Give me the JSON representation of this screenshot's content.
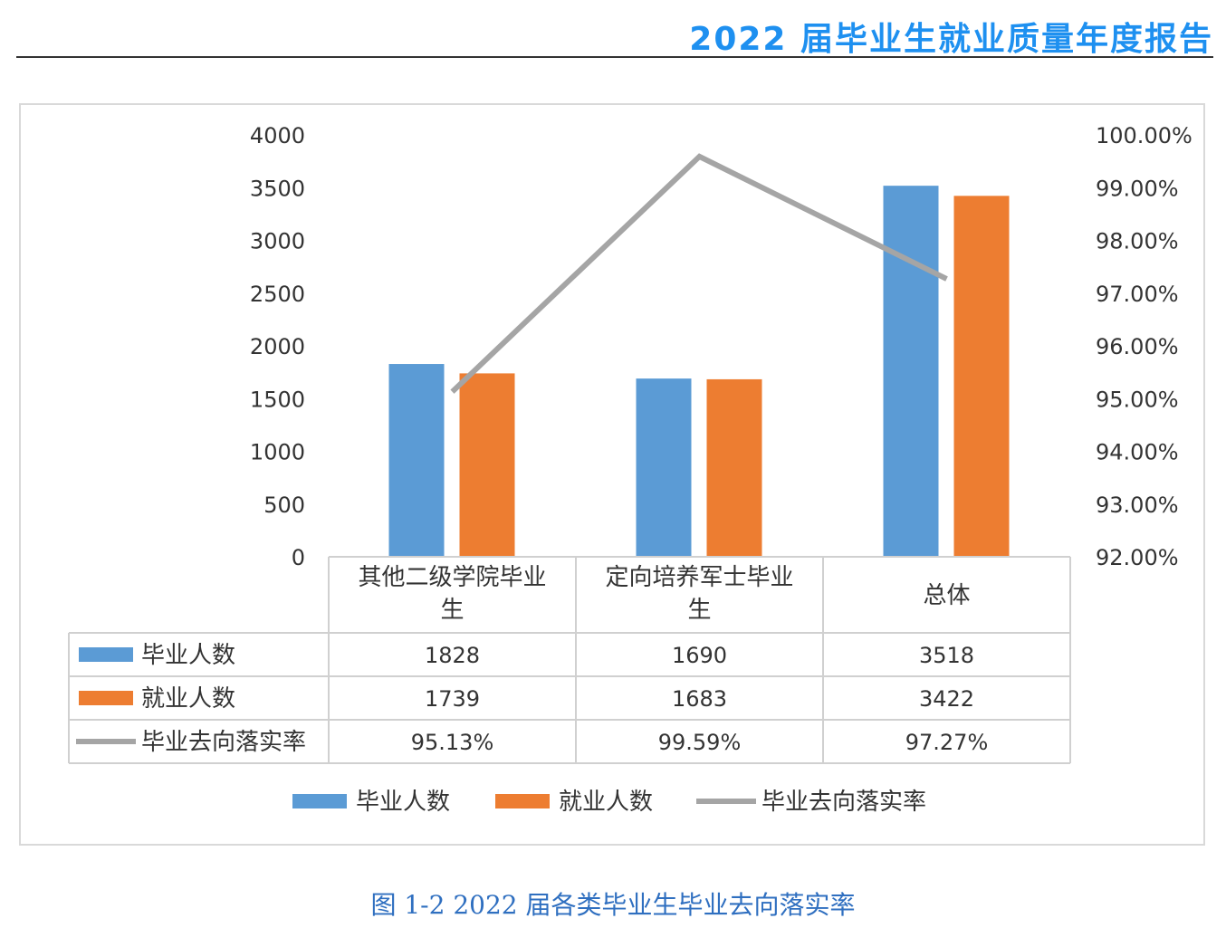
{
  "header": {
    "title": "2022 届毕业生就业质量年度报告"
  },
  "caption": "图 1-2 2022 届各类毕业生毕业去向落实率",
  "colors": {
    "blue": "#5b9bd5",
    "orange": "#ed7d31",
    "gray": "#a5a5a5"
  },
  "chart_data": {
    "type": "bar+line",
    "categories": [
      "其他二级学院毕业生",
      "定向培养军士毕业生",
      "总体"
    ],
    "category_lines": [
      [
        "其他二级学院毕业",
        "生"
      ],
      [
        "定向培养军士毕业",
        "生"
      ],
      [
        "总体"
      ]
    ],
    "series": [
      {
        "name": "毕业人数",
        "type": "bar",
        "axis": "left",
        "values": [
          1828,
          1690,
          3518
        ],
        "labels": [
          "1828",
          "1690",
          "3518"
        ]
      },
      {
        "name": "就业人数",
        "type": "bar",
        "axis": "left",
        "values": [
          1739,
          1683,
          3422
        ],
        "labels": [
          "1739",
          "1683",
          "3422"
        ]
      },
      {
        "name": "毕业去向落实率",
        "type": "line",
        "axis": "right",
        "values": [
          95.13,
          99.59,
          97.27
        ],
        "labels": [
          "95.13%",
          "99.59%",
          "97.27%"
        ]
      }
    ],
    "ylim": [
      0,
      4000
    ],
    "yticks": [
      "0",
      "500",
      "1000",
      "1500",
      "2000",
      "2500",
      "3000",
      "3500",
      "4000"
    ],
    "y2lim": [
      92,
      100
    ],
    "y2ticks": [
      "92.00%",
      "93.00%",
      "94.00%",
      "95.00%",
      "96.00%",
      "97.00%",
      "98.00%",
      "99.00%",
      "100.00%"
    ],
    "data_table": true,
    "legend": "bottom"
  }
}
